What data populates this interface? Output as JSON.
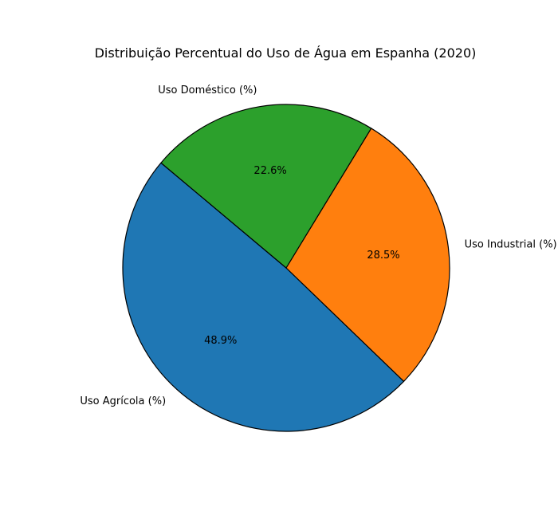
{
  "chart_data": {
    "type": "pie",
    "title": "Distribuição Percentual do Uso de Água em Espanha (2020)",
    "slices": [
      {
        "label": "Uso Agrícola (%)",
        "value": 48.9,
        "pct_label": "48.9%",
        "color": "#1f77b4"
      },
      {
        "label": "Uso Industrial (%)",
        "value": 28.5,
        "pct_label": "28.5%",
        "color": "#ff7f0e"
      },
      {
        "label": "Uso Doméstico (%)",
        "value": 22.6,
        "pct_label": "22.6%",
        "color": "#2ca02c"
      }
    ],
    "start_angle_deg": 140,
    "edge_color": "#000000"
  }
}
